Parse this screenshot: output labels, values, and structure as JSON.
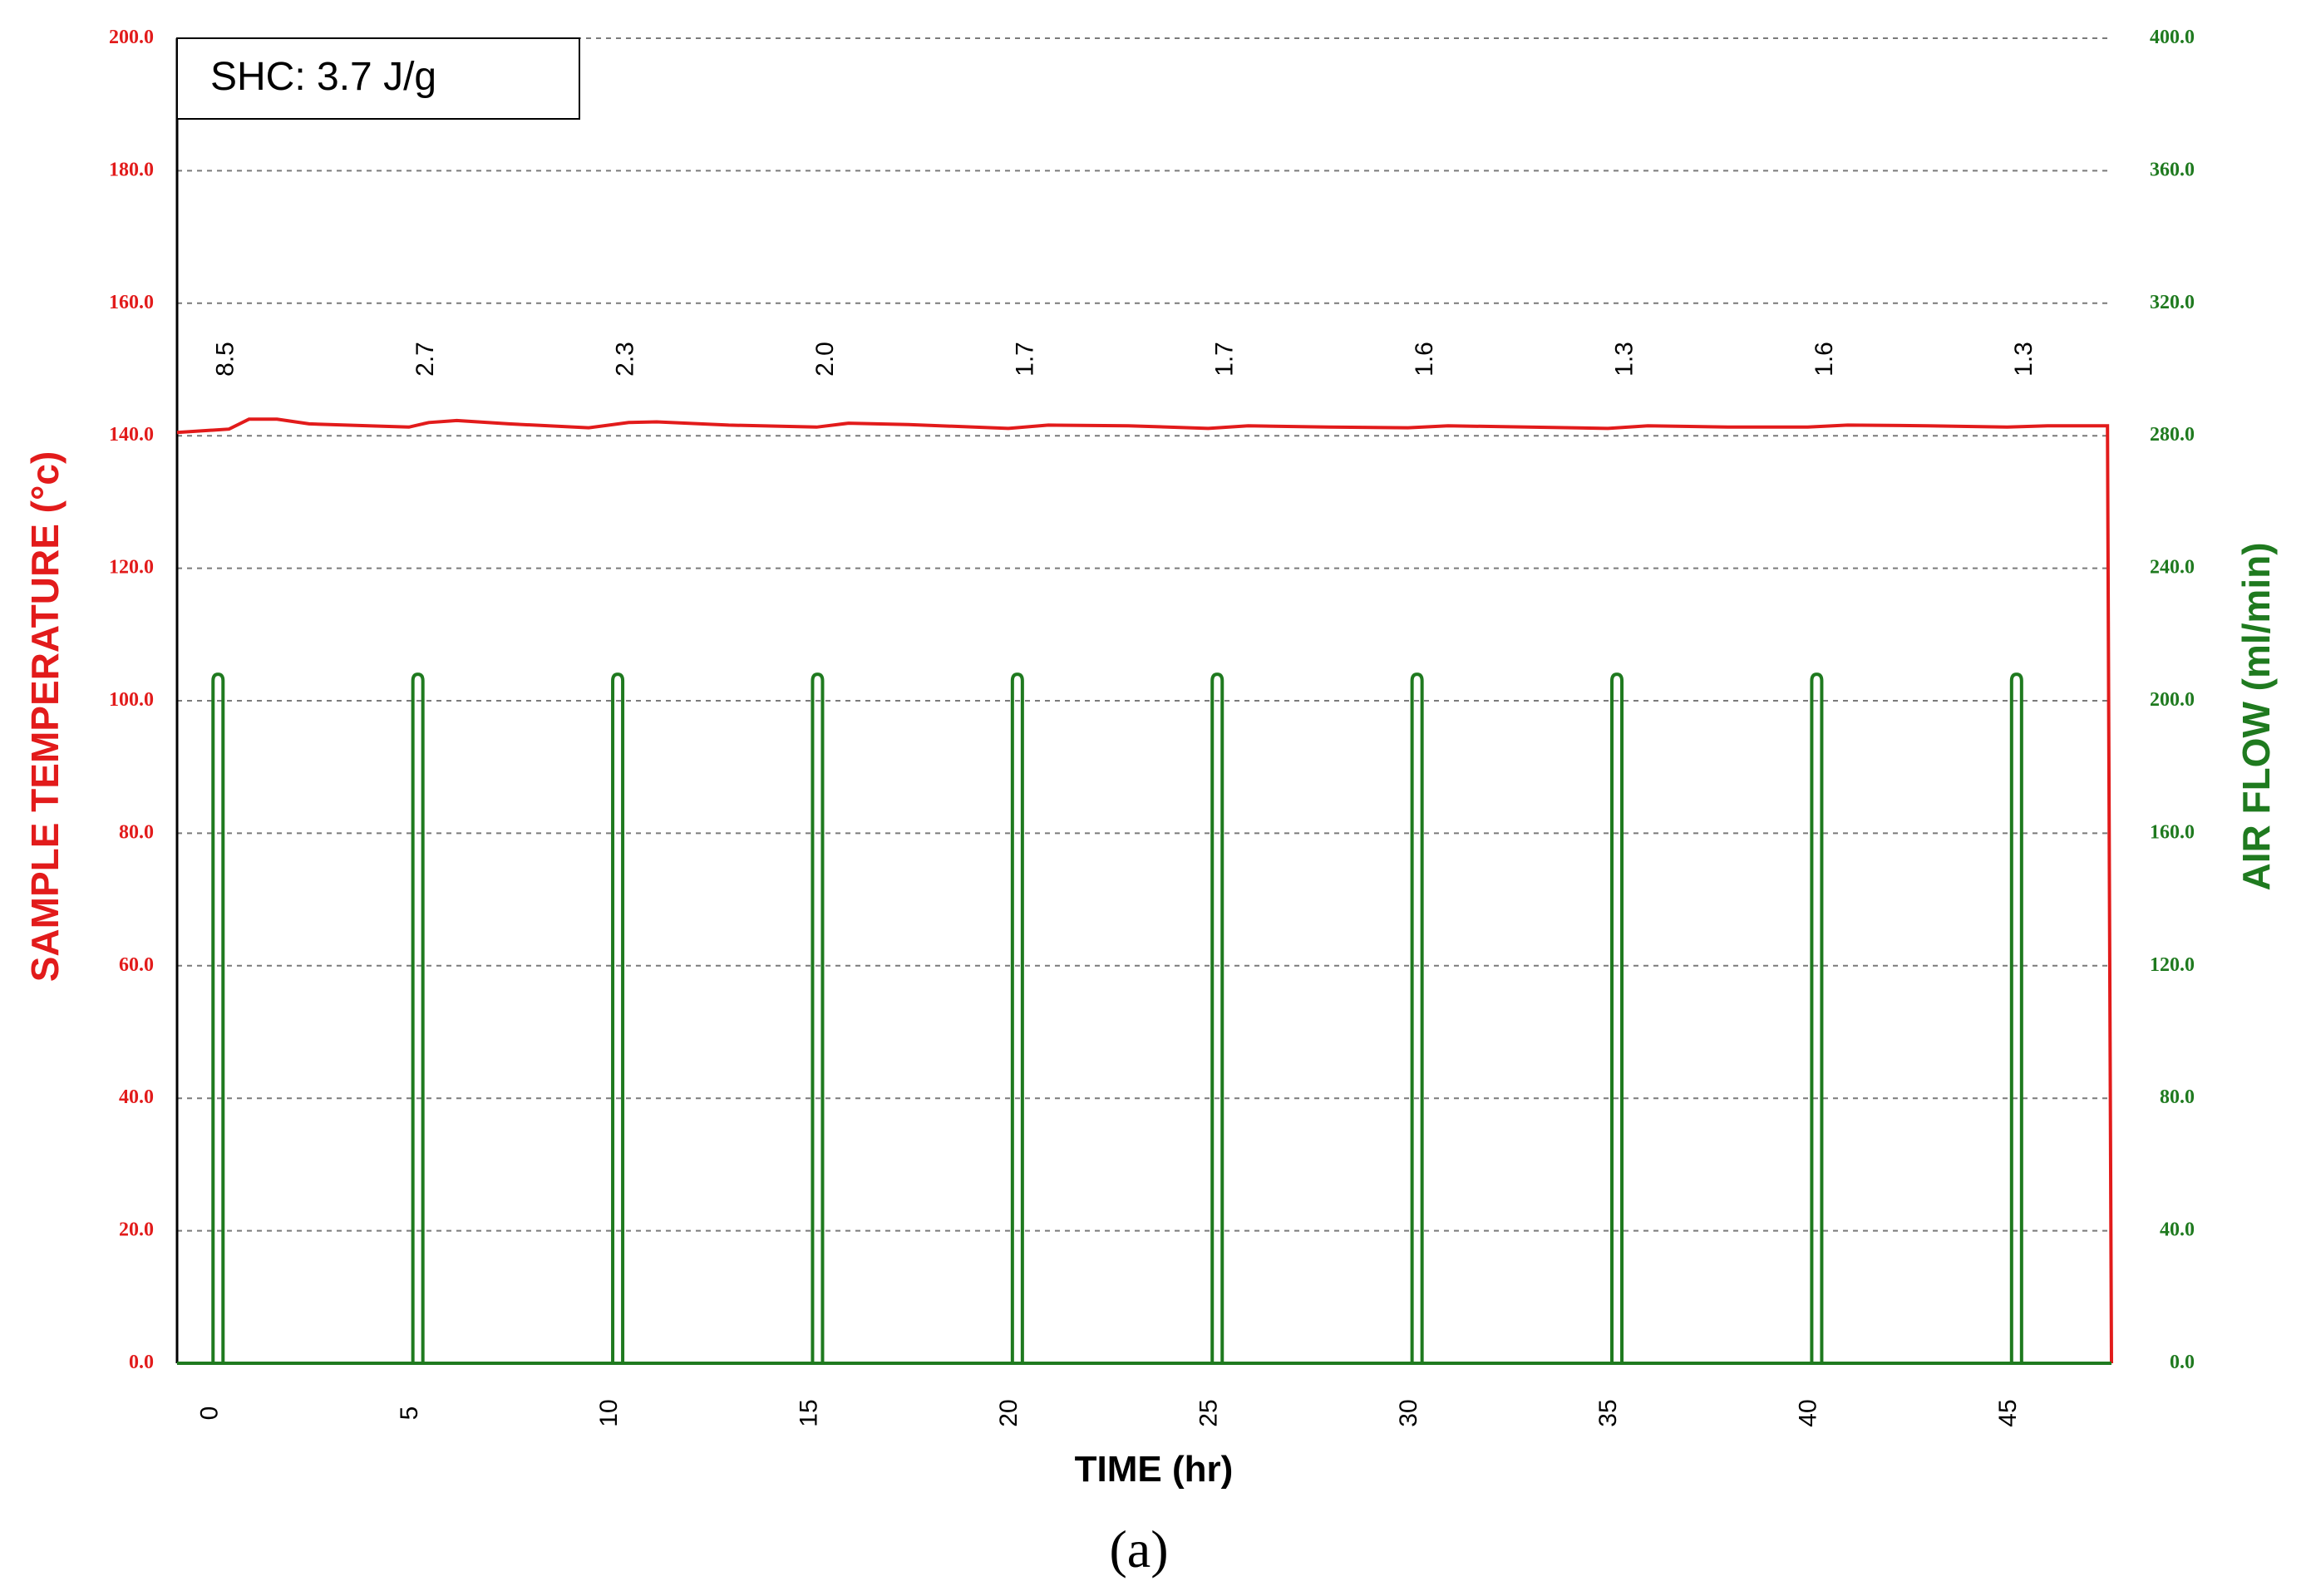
{
  "chart_data": {
    "type": "line",
    "panel_label": "(a)",
    "annotation": "SHC: 3.7 J/g",
    "xlabel": "TIME (hr)",
    "ylabel_left": "SAMPLE TEMPERATURE (°c)",
    "ylabel_right": "AIR FLOW (ml/min)",
    "xlim": [
      -0.8,
      47.6
    ],
    "ylim_left": [
      0,
      200
    ],
    "ylim_right": [
      0,
      400
    ],
    "x_ticks": [
      "0",
      "5",
      "10",
      "15",
      "20",
      "25",
      "30",
      "35",
      "40",
      "45"
    ],
    "y_ticks_left": [
      "0.0",
      "20.0",
      "40.0",
      "60.0",
      "80.0",
      "100.0",
      "120.0",
      "140.0",
      "160.0",
      "180.0",
      "200.0"
    ],
    "y_ticks_right": [
      "0.0",
      "40.0",
      "80.0",
      "120.0",
      "160.0",
      "200.0",
      "240.0",
      "280.0",
      "320.0",
      "360.0",
      "400.0"
    ],
    "grid": true,
    "peak_labels": [
      {
        "x": 0.4,
        "text": "8.5"
      },
      {
        "x": 5.4,
        "text": "2.7"
      },
      {
        "x": 10.4,
        "text": "2.3"
      },
      {
        "x": 15.4,
        "text": "2.0"
      },
      {
        "x": 20.4,
        "text": "1.7"
      },
      {
        "x": 25.4,
        "text": "1.7"
      },
      {
        "x": 30.4,
        "text": "1.6"
      },
      {
        "x": 35.4,
        "text": "1.3"
      },
      {
        "x": 40.4,
        "text": "1.6"
      },
      {
        "x": 45.4,
        "text": "1.3"
      }
    ],
    "series": [
      {
        "name": "SAMPLE TEMPERATURE",
        "axis": "left",
        "color": "#e21b1b",
        "x": [
          -0.8,
          0.5,
          1.0,
          1.7,
          2.5,
          4.0,
          5.0,
          5.5,
          6.2,
          7.5,
          9.5,
          10.5,
          11.2,
          13.0,
          15.2,
          16.0,
          17.5,
          20.0,
          21.0,
          23.0,
          25.0,
          26.0,
          28.0,
          30.0,
          31.0,
          33.0,
          35.0,
          36.0,
          38.0,
          40.0,
          41.0,
          43.0,
          45.0,
          46.0,
          47.5,
          47.55,
          47.6
        ],
        "y": [
          140.5,
          141.0,
          142.5,
          142.5,
          141.8,
          141.5,
          141.3,
          142.0,
          142.3,
          141.8,
          141.2,
          142.0,
          142.1,
          141.6,
          141.3,
          141.9,
          141.7,
          141.1,
          141.6,
          141.5,
          141.1,
          141.5,
          141.3,
          141.2,
          141.5,
          141.3,
          141.1,
          141.5,
          141.3,
          141.3,
          141.6,
          141.5,
          141.3,
          141.5,
          141.5,
          70.0,
          0.0
        ]
      },
      {
        "name": "AIR FLOW",
        "axis": "right",
        "color": "#1f7a1f",
        "pulse_starts": [
          0.1,
          5.1,
          10.1,
          15.1,
          20.1,
          25.1,
          30.1,
          35.1,
          40.1,
          45.1
        ],
        "pulse_width_hr": 0.25,
        "pulse_peak": 208.0,
        "baseline": 0.0
      }
    ]
  }
}
